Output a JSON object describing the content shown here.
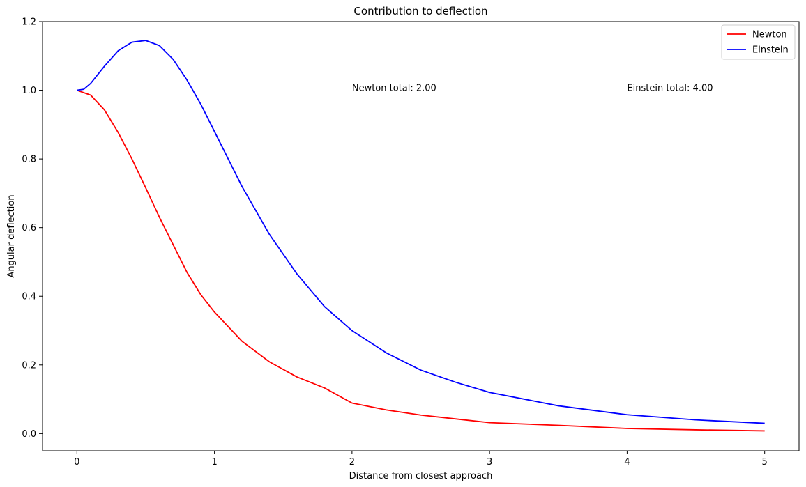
{
  "chart_data": {
    "type": "line",
    "title": "Contribution to deflection",
    "xlabel": "Distance from closest approach",
    "ylabel": "Angular deflection",
    "xlim": [
      -0.25,
      5.25
    ],
    "ylim": [
      -0.05,
      1.2
    ],
    "xticks": [
      0,
      1,
      2,
      3,
      4,
      5
    ],
    "yticks": [
      0.0,
      0.2,
      0.4,
      0.6,
      0.8,
      1.0,
      1.2
    ],
    "xtick_labels": [
      "0",
      "1",
      "2",
      "3",
      "4",
      "5"
    ],
    "ytick_labels": [
      "0.0",
      "0.2",
      "0.4",
      "0.6",
      "0.8",
      "1.0",
      "1.2"
    ],
    "grid": false,
    "legend_position": "top-right",
    "series": [
      {
        "name": "Newton",
        "color": "#ff0000",
        "x": [
          0,
          0.1,
          0.2,
          0.3,
          0.4,
          0.5,
          0.6,
          0.7,
          0.8,
          0.9,
          1.0,
          1.2,
          1.4,
          1.6,
          1.8,
          2.0,
          2.25,
          2.5,
          2.75,
          3.0,
          3.5,
          4.0,
          4.5,
          5.0
        ],
        "y": [
          1.0,
          0.986,
          0.943,
          0.877,
          0.8,
          0.716,
          0.63,
          0.55,
          0.47,
          0.405,
          0.354,
          0.269,
          0.209,
          0.165,
          0.133,
          0.089,
          0.069,
          0.054,
          0.043,
          0.032,
          0.024,
          0.015,
          0.011,
          0.008
        ]
      },
      {
        "name": "Einstein",
        "color": "#0000ff",
        "x": [
          0,
          0.05,
          0.1,
          0.2,
          0.3,
          0.4,
          0.5,
          0.6,
          0.7,
          0.8,
          0.9,
          1.0,
          1.1,
          1.2,
          1.4,
          1.6,
          1.8,
          2.0,
          2.25,
          2.5,
          2.75,
          3.0,
          3.5,
          4.0,
          4.5,
          5.0
        ],
        "y": [
          1.0,
          1.003,
          1.02,
          1.07,
          1.115,
          1.14,
          1.145,
          1.13,
          1.09,
          1.03,
          0.96,
          0.88,
          0.8,
          0.72,
          0.58,
          0.465,
          0.37,
          0.3,
          0.235,
          0.185,
          0.15,
          0.12,
          0.081,
          0.055,
          0.04,
          0.03
        ]
      }
    ],
    "annotations": [
      {
        "text": "Newton total: 2.00",
        "x": 2.0,
        "y": 1.0
      },
      {
        "text": "Einstein total: 4.00",
        "x": 4.0,
        "y": 1.0
      }
    ]
  }
}
